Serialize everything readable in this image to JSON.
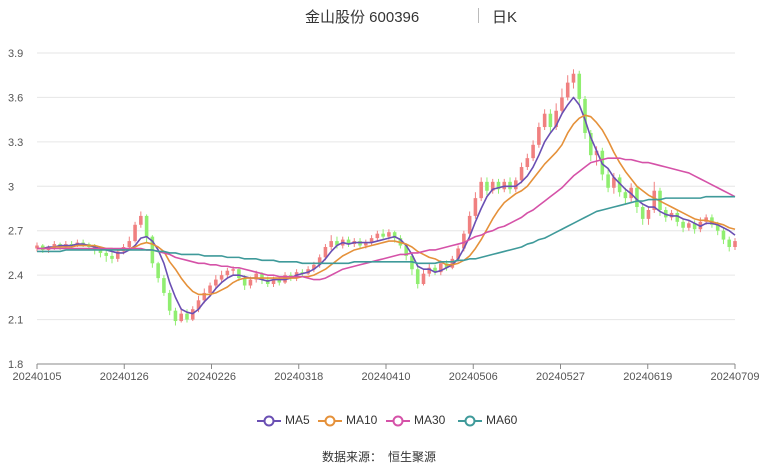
{
  "header": {
    "name": "金山股份 600396",
    "period": "日K"
  },
  "source": {
    "label": "数据来源：",
    "value": "恒生聚源"
  },
  "chart_data": {
    "type": "candlestick",
    "ylim": [
      1.8,
      3.9
    ],
    "yticks": [
      "1.8",
      "2.1",
      "2.4",
      "2.7",
      "3",
      "3.3",
      "3.6",
      "3.9"
    ],
    "ytick_values": [
      1.8,
      2.1,
      2.4,
      2.7,
      3.0,
      3.3,
      3.6,
      3.9
    ],
    "xticks": [
      "20240105",
      "20240126",
      "20240226",
      "20240318",
      "20240410",
      "20240506",
      "20240527",
      "20240619",
      "20240709"
    ],
    "grid": true,
    "legend_position": "bottom",
    "colors": {
      "up": "#f08080",
      "down": "#90ee70",
      "grid": "#e6e6e6",
      "axis": "#888888"
    },
    "candles": [
      [
        2.58,
        2.6,
        2.62,
        2.56
      ],
      [
        2.6,
        2.57,
        2.61,
        2.55
      ],
      [
        2.57,
        2.58,
        2.6,
        2.55
      ],
      [
        2.58,
        2.61,
        2.63,
        2.57
      ],
      [
        2.61,
        2.59,
        2.62,
        2.57
      ],
      [
        2.59,
        2.61,
        2.63,
        2.58
      ],
      [
        2.61,
        2.6,
        2.63,
        2.58
      ],
      [
        2.6,
        2.62,
        2.64,
        2.59
      ],
      [
        2.62,
        2.61,
        2.64,
        2.59
      ],
      [
        2.61,
        2.59,
        2.62,
        2.57
      ],
      [
        2.59,
        2.57,
        2.61,
        2.54
      ],
      [
        2.57,
        2.55,
        2.59,
        2.52
      ],
      [
        2.55,
        2.53,
        2.58,
        2.49
      ],
      [
        2.53,
        2.51,
        2.56,
        2.48
      ],
      [
        2.51,
        2.56,
        2.58,
        2.49
      ],
      [
        2.56,
        2.59,
        2.61,
        2.54
      ],
      [
        2.59,
        2.63,
        2.66,
        2.57
      ],
      [
        2.63,
        2.74,
        2.76,
        2.62
      ],
      [
        2.74,
        2.8,
        2.83,
        2.72
      ],
      [
        2.8,
        2.66,
        2.81,
        2.62
      ],
      [
        2.66,
        2.48,
        2.67,
        2.45
      ],
      [
        2.48,
        2.38,
        2.49,
        2.35
      ],
      [
        2.38,
        2.28,
        2.4,
        2.26
      ],
      [
        2.28,
        2.16,
        2.3,
        2.13
      ],
      [
        2.16,
        2.09,
        2.18,
        2.06
      ],
      [
        2.09,
        2.14,
        2.18,
        2.08
      ],
      [
        2.14,
        2.1,
        2.17,
        2.08
      ],
      [
        2.1,
        2.17,
        2.19,
        2.09
      ],
      [
        2.17,
        2.23,
        2.26,
        2.15
      ],
      [
        2.23,
        2.28,
        2.31,
        2.21
      ],
      [
        2.28,
        2.33,
        2.35,
        2.26
      ],
      [
        2.33,
        2.37,
        2.4,
        2.31
      ],
      [
        2.37,
        2.4,
        2.43,
        2.35
      ],
      [
        2.4,
        2.43,
        2.45,
        2.38
      ],
      [
        2.43,
        2.44,
        2.46,
        2.4
      ],
      [
        2.44,
        2.38,
        2.45,
        2.36
      ],
      [
        2.38,
        2.33,
        2.4,
        2.3
      ],
      [
        2.33,
        2.37,
        2.39,
        2.31
      ],
      [
        2.37,
        2.41,
        2.43,
        2.35
      ],
      [
        2.41,
        2.37,
        2.42,
        2.34
      ],
      [
        2.37,
        2.34,
        2.39,
        2.32
      ],
      [
        2.34,
        2.37,
        2.39,
        2.32
      ],
      [
        2.37,
        2.35,
        2.39,
        2.33
      ],
      [
        2.35,
        2.4,
        2.42,
        2.34
      ],
      [
        2.4,
        2.38,
        2.42,
        2.36
      ],
      [
        2.38,
        2.42,
        2.44,
        2.36
      ],
      [
        2.42,
        2.41,
        2.44,
        2.39
      ],
      [
        2.41,
        2.44,
        2.46,
        2.4
      ],
      [
        2.44,
        2.47,
        2.49,
        2.42
      ],
      [
        2.47,
        2.52,
        2.54,
        2.45
      ],
      [
        2.52,
        2.59,
        2.61,
        2.5
      ],
      [
        2.59,
        2.63,
        2.67,
        2.57
      ],
      [
        2.63,
        2.6,
        2.66,
        2.58
      ],
      [
        2.6,
        2.64,
        2.66,
        2.58
      ],
      [
        2.64,
        2.61,
        2.66,
        2.59
      ],
      [
        2.61,
        2.63,
        2.65,
        2.59
      ],
      [
        2.63,
        2.6,
        2.65,
        2.58
      ],
      [
        2.6,
        2.62,
        2.64,
        2.58
      ],
      [
        2.62,
        2.65,
        2.67,
        2.6
      ],
      [
        2.65,
        2.68,
        2.7,
        2.63
      ],
      [
        2.68,
        2.66,
        2.71,
        2.64
      ],
      [
        2.66,
        2.69,
        2.71,
        2.64
      ],
      [
        2.69,
        2.65,
        2.7,
        2.62
      ],
      [
        2.65,
        2.6,
        2.67,
        2.58
      ],
      [
        2.6,
        2.53,
        2.61,
        2.5
      ],
      [
        2.53,
        2.44,
        2.55,
        2.4
      ],
      [
        2.44,
        2.34,
        2.46,
        2.31
      ],
      [
        2.34,
        2.41,
        2.44,
        2.33
      ],
      [
        2.41,
        2.45,
        2.48,
        2.39
      ],
      [
        2.45,
        2.42,
        2.47,
        2.4
      ],
      [
        2.42,
        2.48,
        2.5,
        2.4
      ],
      [
        2.48,
        2.45,
        2.5,
        2.43
      ],
      [
        2.45,
        2.51,
        2.53,
        2.44
      ],
      [
        2.51,
        2.58,
        2.6,
        2.49
      ],
      [
        2.58,
        2.68,
        2.7,
        2.56
      ],
      [
        2.68,
        2.8,
        2.83,
        2.66
      ],
      [
        2.8,
        2.92,
        2.96,
        2.78
      ],
      [
        2.92,
        3.03,
        3.06,
        2.9
      ],
      [
        3.03,
        2.97,
        3.06,
        2.94
      ],
      [
        2.97,
        3.03,
        3.05,
        2.95
      ],
      [
        3.03,
        2.98,
        3.05,
        2.95
      ],
      [
        2.98,
        3.03,
        3.05,
        2.96
      ],
      [
        3.03,
        2.98,
        3.06,
        2.95
      ],
      [
        2.98,
        3.04,
        3.06,
        2.96
      ],
      [
        3.04,
        3.13,
        3.16,
        3.02
      ],
      [
        3.13,
        3.19,
        3.22,
        3.11
      ],
      [
        3.19,
        3.28,
        3.31,
        3.17
      ],
      [
        3.28,
        3.4,
        3.43,
        3.26
      ],
      [
        3.4,
        3.49,
        3.52,
        3.38
      ],
      [
        3.49,
        3.4,
        3.52,
        3.36
      ],
      [
        3.4,
        3.51,
        3.56,
        3.38
      ],
      [
        3.51,
        3.6,
        3.66,
        3.49
      ],
      [
        3.6,
        3.7,
        3.75,
        3.58
      ],
      [
        3.7,
        3.76,
        3.79,
        3.66
      ],
      [
        3.76,
        3.59,
        3.78,
        3.55
      ],
      [
        3.59,
        3.36,
        3.61,
        3.32
      ],
      [
        3.36,
        3.21,
        3.38,
        3.17
      ],
      [
        3.21,
        3.24,
        3.27,
        3.14
      ],
      [
        3.24,
        3.08,
        3.26,
        3.04
      ],
      [
        3.08,
        2.99,
        3.12,
        2.96
      ],
      [
        2.99,
        3.06,
        3.09,
        2.95
      ],
      [
        3.06,
        2.96,
        3.08,
        2.93
      ],
      [
        2.96,
        2.92,
        2.99,
        2.88
      ],
      [
        2.92,
        2.99,
        3.02,
        2.89
      ],
      [
        2.99,
        2.86,
        3.0,
        2.82
      ],
      [
        2.86,
        2.78,
        2.88,
        2.74
      ],
      [
        2.78,
        2.84,
        2.86,
        2.74
      ],
      [
        2.84,
        2.97,
        3.03,
        2.82
      ],
      [
        2.97,
        2.84,
        2.99,
        2.8
      ],
      [
        2.84,
        2.79,
        2.86,
        2.76
      ],
      [
        2.79,
        2.82,
        2.84,
        2.77
      ],
      [
        2.82,
        2.76,
        2.84,
        2.73
      ],
      [
        2.76,
        2.72,
        2.78,
        2.69
      ],
      [
        2.72,
        2.75,
        2.77,
        2.7
      ],
      [
        2.75,
        2.71,
        2.77,
        2.68
      ],
      [
        2.71,
        2.76,
        2.79,
        2.69
      ],
      [
        2.76,
        2.79,
        2.81,
        2.74
      ],
      [
        2.79,
        2.74,
        2.81,
        2.72
      ],
      [
        2.74,
        2.7,
        2.76,
        2.67
      ],
      [
        2.7,
        2.64,
        2.72,
        2.61
      ],
      [
        2.64,
        2.59,
        2.66,
        2.56
      ],
      [
        2.59,
        2.63,
        2.65,
        2.57
      ]
    ],
    "series": [
      {
        "name": "MA5",
        "color": "#6a4fb3",
        "values": [
          2.58,
          2.58,
          2.59,
          2.59,
          2.6,
          2.6,
          2.6,
          2.61,
          2.61,
          2.6,
          2.59,
          2.58,
          2.57,
          2.56,
          2.55,
          2.55,
          2.57,
          2.6,
          2.65,
          2.66,
          2.63,
          2.57,
          2.48,
          2.35,
          2.25,
          2.17,
          2.15,
          2.14,
          2.17,
          2.22,
          2.26,
          2.31,
          2.35,
          2.38,
          2.4,
          2.4,
          2.39,
          2.38,
          2.38,
          2.37,
          2.36,
          2.37,
          2.37,
          2.37,
          2.38,
          2.4,
          2.41,
          2.42,
          2.44,
          2.47,
          2.51,
          2.56,
          2.6,
          2.62,
          2.61,
          2.62,
          2.62,
          2.62,
          2.62,
          2.63,
          2.64,
          2.65,
          2.66,
          2.64,
          2.6,
          2.54,
          2.46,
          2.44,
          2.44,
          2.42,
          2.43,
          2.45,
          2.47,
          2.51,
          2.58,
          2.66,
          2.76,
          2.85,
          2.93,
          2.98,
          2.99,
          3.0,
          3.0,
          3.0,
          3.03,
          3.07,
          3.13,
          3.21,
          3.3,
          3.36,
          3.41,
          3.49,
          3.55,
          3.6,
          3.55,
          3.45,
          3.33,
          3.24,
          3.15,
          3.12,
          3.06,
          3.02,
          2.98,
          2.95,
          2.91,
          2.88,
          2.86,
          2.86,
          2.83,
          2.81,
          2.8,
          2.8,
          2.78,
          2.77,
          2.75,
          2.73,
          2.75,
          2.75,
          2.74,
          2.72,
          2.7,
          2.67
        ]
      },
      {
        "name": "MA10",
        "color": "#e5913a",
        "values": [
          2.58,
          2.58,
          2.58,
          2.59,
          2.59,
          2.59,
          2.59,
          2.6,
          2.6,
          2.6,
          2.6,
          2.59,
          2.58,
          2.58,
          2.57,
          2.57,
          2.58,
          2.59,
          2.61,
          2.62,
          2.61,
          2.59,
          2.56,
          2.49,
          2.44,
          2.38,
          2.33,
          2.29,
          2.27,
          2.27,
          2.27,
          2.28,
          2.3,
          2.32,
          2.35,
          2.37,
          2.38,
          2.38,
          2.38,
          2.38,
          2.38,
          2.38,
          2.38,
          2.38,
          2.38,
          2.38,
          2.39,
          2.39,
          2.4,
          2.42,
          2.44,
          2.47,
          2.5,
          2.53,
          2.55,
          2.57,
          2.58,
          2.59,
          2.6,
          2.61,
          2.62,
          2.63,
          2.63,
          2.62,
          2.61,
          2.59,
          2.56,
          2.54,
          2.52,
          2.51,
          2.49,
          2.47,
          2.47,
          2.48,
          2.5,
          2.53,
          2.58,
          2.64,
          2.71,
          2.78,
          2.84,
          2.89,
          2.92,
          2.95,
          2.97,
          3.0,
          3.05,
          3.1,
          3.15,
          3.19,
          3.23,
          3.28,
          3.36,
          3.42,
          3.46,
          3.48,
          3.47,
          3.43,
          3.38,
          3.31,
          3.23,
          3.16,
          3.1,
          3.05,
          3.0,
          2.97,
          2.94,
          2.92,
          2.9,
          2.88,
          2.86,
          2.84,
          2.82,
          2.8,
          2.78,
          2.77,
          2.77,
          2.76,
          2.75,
          2.74,
          2.72,
          2.71
        ]
      },
      {
        "name": "MA30",
        "color": "#d552a8",
        "values": [
          2.58,
          2.58,
          2.58,
          2.58,
          2.58,
          2.58,
          2.58,
          2.58,
          2.58,
          2.58,
          2.58,
          2.58,
          2.58,
          2.58,
          2.58,
          2.58,
          2.58,
          2.58,
          2.58,
          2.57,
          2.57,
          2.56,
          2.55,
          2.54,
          2.52,
          2.51,
          2.5,
          2.49,
          2.48,
          2.48,
          2.47,
          2.47,
          2.46,
          2.46,
          2.45,
          2.45,
          2.44,
          2.43,
          2.42,
          2.41,
          2.4,
          2.4,
          2.39,
          2.39,
          2.39,
          2.39,
          2.39,
          2.38,
          2.37,
          2.37,
          2.38,
          2.4,
          2.42,
          2.44,
          2.45,
          2.46,
          2.47,
          2.48,
          2.49,
          2.5,
          2.51,
          2.52,
          2.53,
          2.54,
          2.54,
          2.55,
          2.55,
          2.56,
          2.57,
          2.57,
          2.58,
          2.59,
          2.6,
          2.61,
          2.62,
          2.64,
          2.66,
          2.67,
          2.69,
          2.7,
          2.72,
          2.73,
          2.75,
          2.77,
          2.79,
          2.82,
          2.84,
          2.87,
          2.9,
          2.93,
          2.96,
          2.99,
          3.03,
          3.07,
          3.1,
          3.13,
          3.16,
          3.17,
          3.18,
          3.19,
          3.19,
          3.19,
          3.18,
          3.18,
          3.17,
          3.16,
          3.16,
          3.15,
          3.14,
          3.13,
          3.12,
          3.11,
          3.1,
          3.09,
          3.07,
          3.05,
          3.03,
          3.01,
          2.99,
          2.97,
          2.95,
          2.93
        ]
      },
      {
        "name": "MA60",
        "color": "#3f9a9a",
        "values": [
          2.56,
          2.56,
          2.56,
          2.56,
          2.56,
          2.57,
          2.57,
          2.57,
          2.57,
          2.57,
          2.57,
          2.57,
          2.57,
          2.57,
          2.57,
          2.57,
          2.57,
          2.57,
          2.57,
          2.57,
          2.57,
          2.56,
          2.56,
          2.55,
          2.55,
          2.54,
          2.54,
          2.54,
          2.54,
          2.53,
          2.53,
          2.53,
          2.53,
          2.52,
          2.52,
          2.52,
          2.51,
          2.51,
          2.51,
          2.5,
          2.5,
          2.5,
          2.49,
          2.49,
          2.49,
          2.49,
          2.48,
          2.48,
          2.48,
          2.48,
          2.48,
          2.48,
          2.48,
          2.48,
          2.48,
          2.49,
          2.49,
          2.49,
          2.49,
          2.49,
          2.49,
          2.49,
          2.49,
          2.49,
          2.49,
          2.49,
          2.48,
          2.48,
          2.48,
          2.48,
          2.49,
          2.49,
          2.49,
          2.5,
          2.5,
          2.51,
          2.51,
          2.52,
          2.53,
          2.54,
          2.55,
          2.56,
          2.57,
          2.58,
          2.59,
          2.61,
          2.62,
          2.64,
          2.65,
          2.67,
          2.69,
          2.71,
          2.73,
          2.75,
          2.77,
          2.79,
          2.81,
          2.83,
          2.84,
          2.85,
          2.86,
          2.87,
          2.88,
          2.89,
          2.9,
          2.9,
          2.91,
          2.91,
          2.91,
          2.92,
          2.92,
          2.92,
          2.92,
          2.92,
          2.92,
          2.92,
          2.93,
          2.93,
          2.93,
          2.93,
          2.93,
          2.93
        ]
      }
    ]
  }
}
